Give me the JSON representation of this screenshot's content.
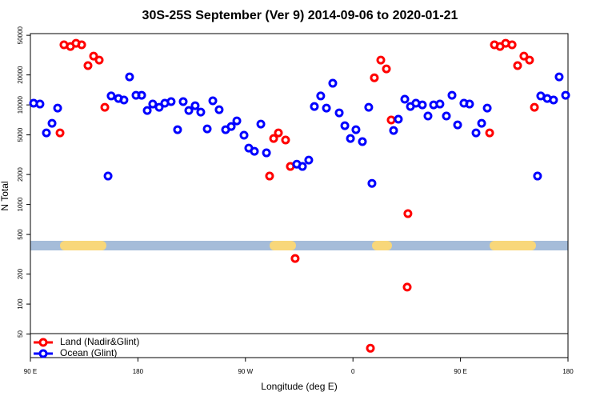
{
  "chart_data": {
    "type": "scatter",
    "title": "30S-25S September (Ver 9)   2014-09-06 to 2020-01-21",
    "xlabel": "Longitude (deg E)",
    "ylabel": "N Total",
    "xlim": [
      90,
      540
    ],
    "xticks": [
      {
        "value": 90,
        "label": "90 E"
      },
      180,
      {
        "value": 270,
        "label": "90 W"
      },
      {
        "value": 360,
        "label": "0"
      },
      {
        "value": 450,
        "label": "90 E"
      },
      {
        "value": 540,
        "label": "180"
      }
    ],
    "ylim": [
      29,
      52000
    ],
    "ylog": true,
    "yticks": [
      50,
      100,
      200,
      500,
      1000,
      2000,
      5000,
      10000,
      20000,
      50000
    ],
    "legend": "bottom-left",
    "series": [
      {
        "name": "Land (Nadir&Glint)",
        "color": "#ff0000",
        "x": [
          114.8,
          118.1,
          123.5,
          128.2,
          132.9,
          138.2,
          142.9,
          147.6,
          152.3,
          290.2,
          293.6,
          297.6,
          303.6,
          307.6,
          311.6,
          374.6,
          377.9,
          383.3,
          388,
          392,
          405.4,
          406,
          474.4,
          478.4,
          483.1,
          487.8,
          493.2,
          497.8,
          503.1,
          507.8,
          511.9
        ],
        "values": [
          5230,
          40100,
          38600,
          41600,
          40100,
          24800,
          30900,
          28200,
          9460,
          1930,
          4600,
          5230,
          4440,
          2410,
          287,
          36,
          18700,
          28200,
          23000,
          7050,
          148,
          809,
          5230,
          40100,
          38600,
          41600,
          40100,
          24800,
          30900,
          28200,
          9460
        ]
      },
      {
        "name": "Ocean (Glint)",
        "color": "#0000ff",
        "x": [
          92.7,
          98,
          103.4,
          108.1,
          112.8,
          155,
          157.6,
          163.7,
          168.3,
          173,
          178.4,
          183.1,
          187.8,
          192.4,
          197.8,
          202.5,
          207.8,
          213.2,
          217.9,
          222.6,
          227.9,
          232.6,
          238,
          242.7,
          248,
          253.4,
          258.1,
          262.8,
          268.8,
          272.8,
          277.5,
          282.9,
          287.6,
          313,
          317.7,
          323,
          327.7,
          333,
          337.8,
          343.1,
          348.5,
          353.2,
          357.9,
          362.5,
          367.9,
          373.2,
          375.9,
          394,
          398,
          403.4,
          408.1,
          412.7,
          418.1,
          422.8,
          427.5,
          432.8,
          438.2,
          442.9,
          447.6,
          452.9,
          457.6,
          463,
          467.7,
          472.4,
          514.5,
          517.2,
          522.6,
          527.9,
          532.6,
          538
        ],
        "values": [
          10400,
          10200,
          5230,
          6540,
          9290,
          1930,
          12300,
          11600,
          11200,
          19100,
          12500,
          12500,
          8790,
          10200,
          9460,
          10400,
          10800,
          5640,
          10800,
          8790,
          9820,
          8470,
          5740,
          11000,
          8950,
          5640,
          6070,
          6910,
          4960,
          3680,
          3420,
          6420,
          3300,
          2540,
          2410,
          2790,
          9640,
          12300,
          9290,
          16500,
          8320,
          6180,
          4600,
          5640,
          4280,
          9460,
          1630,
          5530,
          7180,
          11400,
          9640,
          10400,
          10000,
          7730,
          10000,
          10200,
          7730,
          12500,
          6300,
          10400,
          10200,
          5230,
          6540,
          9290,
          1930,
          12300,
          11600,
          11200,
          19100,
          12500
        ]
      }
    ]
  }
}
